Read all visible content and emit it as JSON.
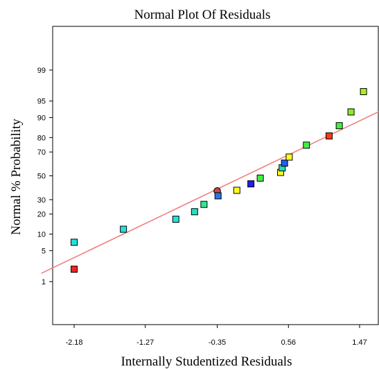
{
  "chart_data": {
    "type": "scatter",
    "title": "Normal Plot Of Residuals",
    "xlabel": "Internally Studentized Residuals",
    "ylabel": "Normal % Probability",
    "xlim": [
      -2.6,
      1.75
    ],
    "x_ticks": [
      -2.18,
      -1.27,
      -0.35,
      0.56,
      1.47
    ],
    "x_tick_labels": [
      "-2.18",
      "-1.27",
      "-0.35",
      "0.56",
      "1.47"
    ],
    "y_ticks": [
      1,
      5,
      10,
      20,
      30,
      50,
      70,
      80,
      90,
      95,
      99
    ],
    "y_tick_labels": [
      "1",
      "5",
      "10",
      "20",
      "30",
      "50",
      "70",
      "80",
      "90",
      "95",
      "99"
    ],
    "grid": false,
    "reference_line": {
      "x": [
        -2.6,
        1.75
      ],
      "y_prob": [
        1.6,
        92.5
      ],
      "color": "#f08080"
    },
    "points": [
      {
        "x": -2.18,
        "y": 2.0,
        "color": "#ff2020",
        "shape": "square"
      },
      {
        "x": -2.18,
        "y": 7.2,
        "color": "#22e0e0",
        "shape": "square"
      },
      {
        "x": -1.55,
        "y": 12.0,
        "color": "#22e0e0",
        "shape": "square"
      },
      {
        "x": -0.88,
        "y": 17.0,
        "color": "#22e0e0",
        "shape": "square"
      },
      {
        "x": -0.64,
        "y": 21.5,
        "color": "#22e0c0",
        "shape": "square"
      },
      {
        "x": -0.52,
        "y": 26.5,
        "color": "#30e890",
        "shape": "square"
      },
      {
        "x": -0.35,
        "y": 37.0,
        "color": "#c84848",
        "shape": "circle"
      },
      {
        "x": -0.34,
        "y": 33.0,
        "color": "#2878e8",
        "shape": "square"
      },
      {
        "x": -0.1,
        "y": 37.5,
        "color": "#ffff22",
        "shape": "square"
      },
      {
        "x": 0.08,
        "y": 43.0,
        "color": "#2020e8",
        "shape": "square"
      },
      {
        "x": 0.2,
        "y": 48.0,
        "color": "#44ee44",
        "shape": "square"
      },
      {
        "x": 0.46,
        "y": 53.0,
        "color": "#ffff22",
        "shape": "square"
      },
      {
        "x": 0.48,
        "y": 57.0,
        "color": "#22e0b0",
        "shape": "square"
      },
      {
        "x": 0.51,
        "y": 61.0,
        "color": "#2060e8",
        "shape": "square"
      },
      {
        "x": 0.57,
        "y": 66.0,
        "color": "#ffff22",
        "shape": "square"
      },
      {
        "x": 0.79,
        "y": 75.0,
        "color": "#44ee44",
        "shape": "square"
      },
      {
        "x": 1.08,
        "y": 81.0,
        "color": "#ff3a1a",
        "shape": "square"
      },
      {
        "x": 1.21,
        "y": 86.5,
        "color": "#44ee44",
        "shape": "square"
      },
      {
        "x": 1.36,
        "y": 92.0,
        "color": "#88ee22",
        "shape": "square"
      },
      {
        "x": 1.52,
        "y": 96.8,
        "color": "#aaee22",
        "shape": "square"
      }
    ]
  }
}
